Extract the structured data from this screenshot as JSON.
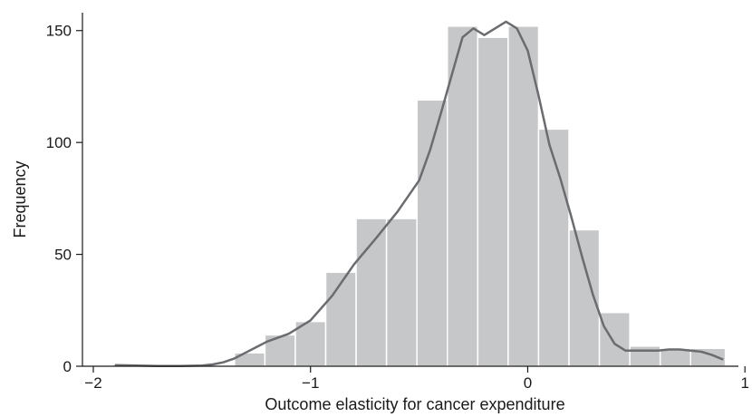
{
  "chart_data": {
    "type": "bar",
    "subtype": "histogram-with-density",
    "title": "",
    "xlabel": "Outcome elasticity for cancer expenditure",
    "ylabel": "Frequency",
    "xlim": [
      -2.05,
      0.97
    ],
    "ylim": [
      0,
      158
    ],
    "x_ticks": [
      -2,
      -1,
      0,
      1
    ],
    "x_tick_labels": [
      "−2",
      "−1",
      "0",
      "1"
    ],
    "y_ticks": [
      0,
      50,
      100,
      150
    ],
    "y_tick_labels": [
      "0",
      "50",
      "100",
      "150"
    ],
    "grid": false,
    "legend": "none",
    "bins": [
      {
        "x0": -1.91,
        "x1": -1.77,
        "count": 1
      },
      {
        "x0": -1.35,
        "x1": -1.21,
        "count": 6
      },
      {
        "x0": -1.21,
        "x1": -1.07,
        "count": 14
      },
      {
        "x0": -1.07,
        "x1": -0.93,
        "count": 20
      },
      {
        "x0": -0.93,
        "x1": -0.79,
        "count": 42
      },
      {
        "x0": -0.79,
        "x1": -0.65,
        "count": 66
      },
      {
        "x0": -0.65,
        "x1": -0.51,
        "count": 66
      },
      {
        "x0": -0.51,
        "x1": -0.37,
        "count": 119
      },
      {
        "x0": -0.37,
        "x1": -0.23,
        "count": 152
      },
      {
        "x0": -0.23,
        "x1": -0.09,
        "count": 147
      },
      {
        "x0": -0.09,
        "x1": 0.05,
        "count": 152
      },
      {
        "x0": 0.05,
        "x1": 0.19,
        "count": 106
      },
      {
        "x0": 0.19,
        "x1": 0.33,
        "count": 61
      },
      {
        "x0": 0.33,
        "x1": 0.47,
        "count": 24
      },
      {
        "x0": 0.47,
        "x1": 0.61,
        "count": 9
      },
      {
        "x0": 0.61,
        "x1": 0.75,
        "count": 8
      },
      {
        "x0": 0.75,
        "x1": 0.91,
        "count": 8
      }
    ],
    "density_curve": {
      "x": [
        -1.9,
        -1.8,
        -1.7,
        -1.6,
        -1.5,
        -1.45,
        -1.4,
        -1.35,
        -1.3,
        -1.25,
        -1.2,
        -1.1,
        -1.0,
        -0.9,
        -0.8,
        -0.7,
        -0.6,
        -0.5,
        -0.45,
        -0.4,
        -0.35,
        -0.3,
        -0.25,
        -0.2,
        -0.15,
        -0.1,
        -0.05,
        0.0,
        0.05,
        0.1,
        0.15,
        0.2,
        0.25,
        0.3,
        0.35,
        0.4,
        0.45,
        0.5,
        0.55,
        0.6,
        0.65,
        0.7,
        0.75,
        0.8,
        0.85,
        0.9
      ],
      "y": [
        0.5,
        0.3,
        0.1,
        0.1,
        0.3,
        0.8,
        1.8,
        3.5,
        6,
        8.5,
        11,
        14.5,
        20.5,
        31.5,
        45.5,
        57,
        69,
        83,
        96.5,
        113,
        130,
        147,
        151,
        148,
        151,
        154,
        151,
        141,
        121,
        99,
        84,
        67,
        49,
        32,
        18,
        10,
        7,
        7,
        7,
        7,
        7.5,
        7.5,
        7,
        6.5,
        5,
        3
      ]
    },
    "colors": {
      "bar_fill": "#c6c7c8",
      "bar_edge": "#ffffff",
      "curve": "#6b6c6f",
      "axis": "#1a1a1a"
    }
  }
}
